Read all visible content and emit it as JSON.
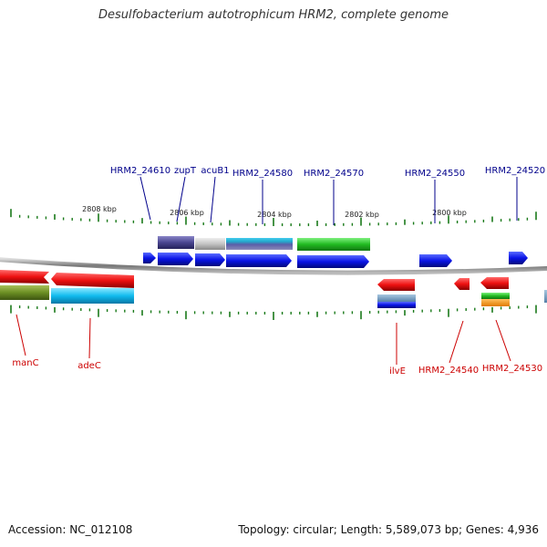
{
  "title": "Desulfobacterium autotrophicum HRM2, complete genome",
  "footer": {
    "accession": "Accession: NC_012108",
    "stats": "Topology: circular; Length: 5,589,073 bp; Genes: 4,936"
  },
  "kbp_labels": [
    "2808 kbp",
    "2806 kbp",
    "2804 kbp",
    "2802 kbp",
    "2800 kbp"
  ],
  "forward_labels": [
    "HRM2_24610",
    "zupT",
    "acuB1",
    "HRM2_24580",
    "HRM2_24570",
    "HRM2_24550",
    "HRM2_24520"
  ],
  "reverse_labels": [
    "manC",
    "adeC",
    "ilvE",
    "HRM2_24540",
    "HRM2_24530"
  ],
  "colors": {
    "forward_label": "#00008b",
    "reverse_label": "#cc0000",
    "cds": "#0a14e6",
    "gene_reverse": "#ee1111",
    "tick": "#1a7a1a",
    "backbone": "#888888"
  }
}
